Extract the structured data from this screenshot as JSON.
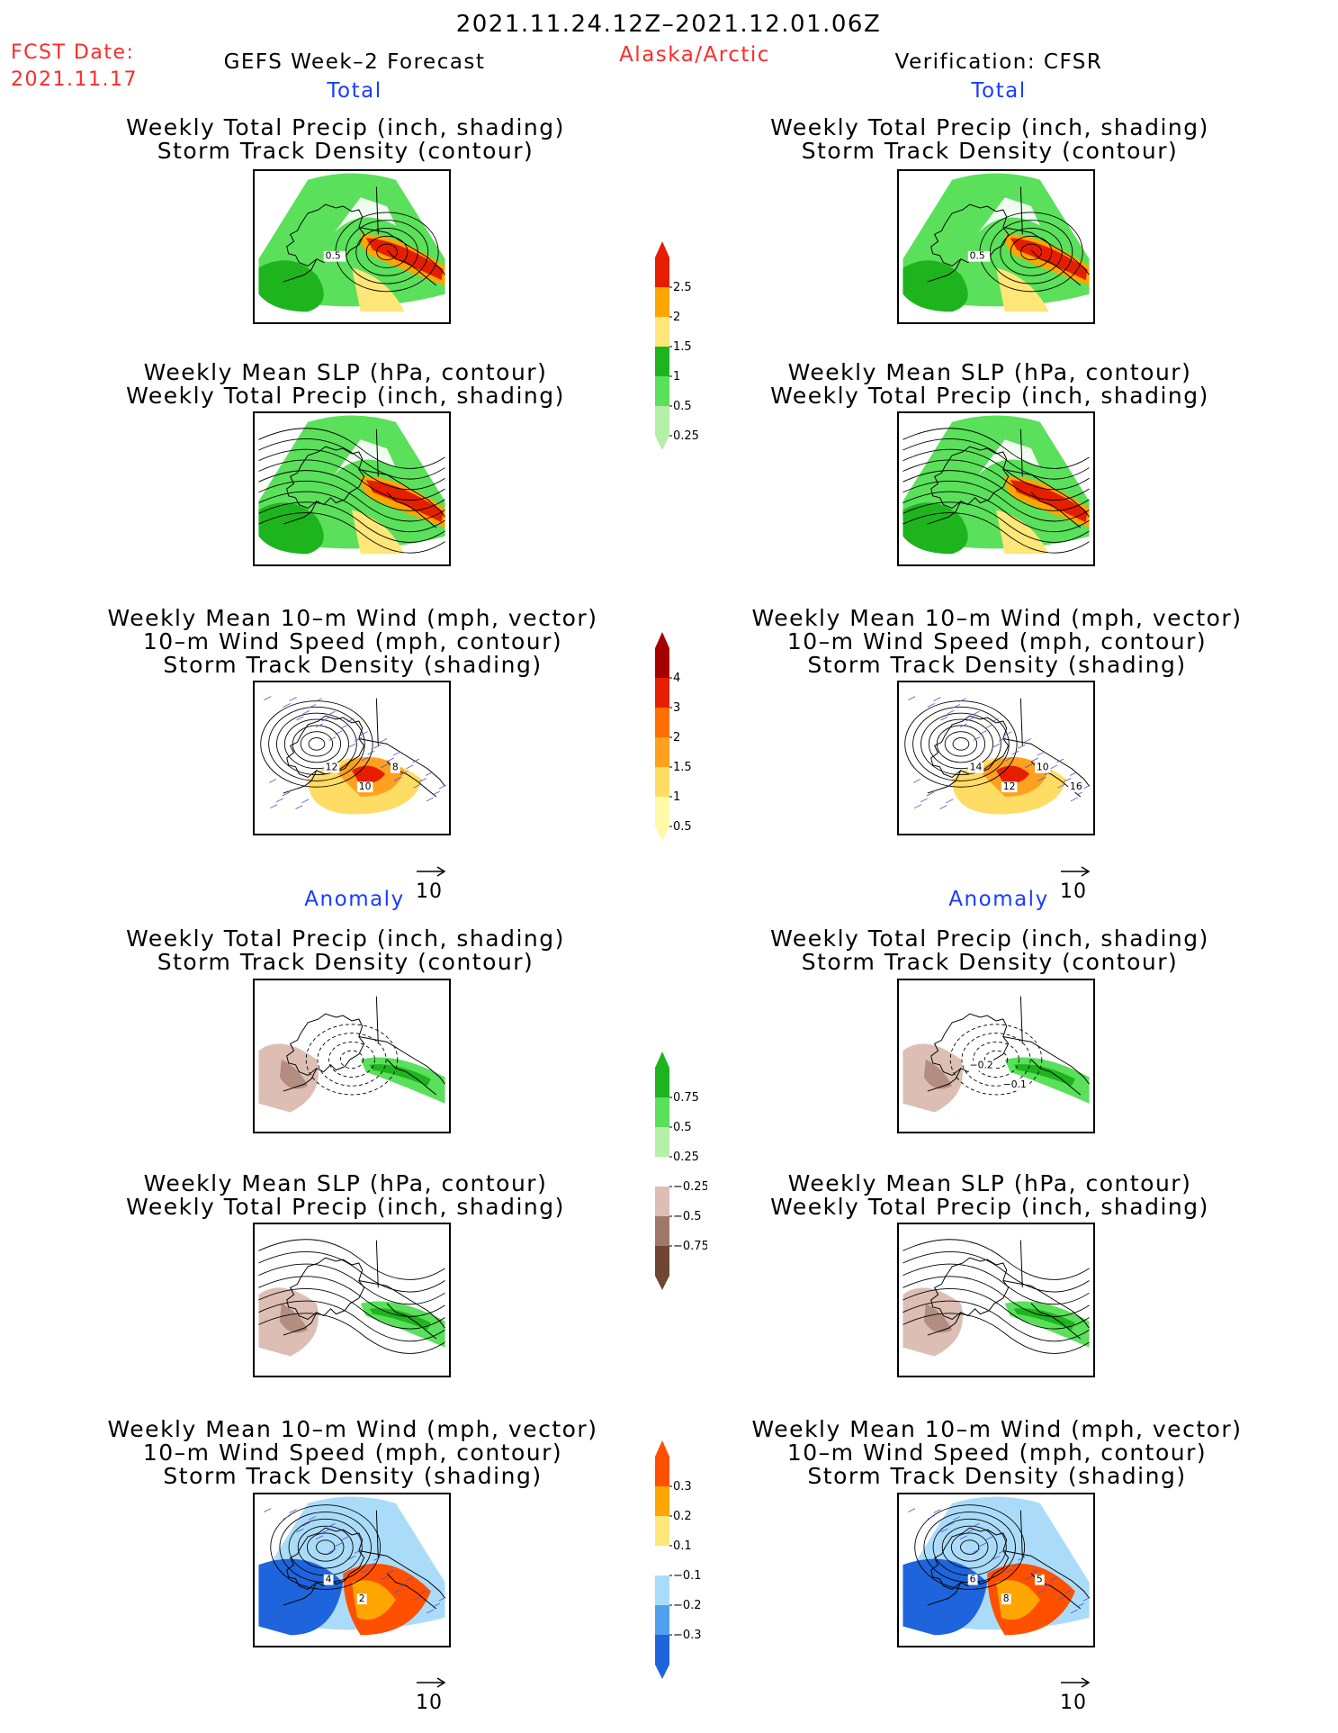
{
  "header": {
    "period": "2021.11.24.12Z–2021.12.01.06Z",
    "fcst_label": "FCST Date:",
    "fcst_date": "2021.11.17",
    "product": "GEFS Week–2 Forecast",
    "region": "Alaska/Arctic",
    "verification": "Verification: CFSR"
  },
  "sections": {
    "total": "Total",
    "anomaly": "Anomaly"
  },
  "titles": {
    "precip_storm": [
      "Weekly Total Precip (inch, shading)",
      "Storm Track Density (contour)"
    ],
    "slp_precip": [
      "Weekly Mean SLP (hPa, contour)",
      "Weekly Total Precip (inch, shading)"
    ],
    "wind_storm": [
      "Weekly Mean 10–m Wind (mph, vector)",
      "10–m Wind Speed (mph, contour)",
      "Storm Track Density (shading)"
    ]
  },
  "vector_key": "10",
  "chart_data": [
    {
      "type": "heatmap",
      "name": "total-precip-colorbar",
      "levels": [
        "0.25",
        "0.5",
        "1",
        "1.5",
        "2",
        "2.5"
      ],
      "colors": [
        "#b4f0a8",
        "#5ae05a",
        "#1eb41e",
        "#ffe678",
        "#ffa500",
        "#e61e00"
      ]
    },
    {
      "type": "heatmap",
      "name": "total-storm-density-colorbar",
      "levels": [
        "0.5",
        "1",
        "1.5",
        "2",
        "3",
        "4"
      ],
      "colors": [
        "#fffaaa",
        "#ffdc64",
        "#ffa01e",
        "#ff6e00",
        "#e61e00",
        "#a50000"
      ]
    },
    {
      "type": "heatmap",
      "name": "anomaly-precip-colorbar",
      "levels": [
        "−0.75",
        "−0.5",
        "−0.25",
        "0.25",
        "0.5",
        "0.75"
      ],
      "colors": [
        "#6e4632",
        "#a0786a",
        "#dcbeb4",
        "#ffffff",
        "#b4f0a8",
        "#5ae05a",
        "#1eb41e"
      ]
    },
    {
      "type": "heatmap",
      "name": "anomaly-storm-density-colorbar",
      "levels": [
        "−0.3",
        "−0.2",
        "−0.1",
        "0.1",
        "0.2",
        "0.3"
      ],
      "colors": [
        "#1e64dc",
        "#50a0f0",
        "#aadcfa",
        "#ffffff",
        "#ffe678",
        "#ffa500",
        "#ff5000"
      ]
    }
  ],
  "contour_labels": {
    "fcst_total_precip": [
      "0.5"
    ],
    "fcst_total_wind": [
      "12",
      "10",
      "8"
    ],
    "ver_total_wind": [
      "14",
      "12",
      "10",
      "16"
    ],
    "fcst_anom_wind": [
      "4",
      "2"
    ],
    "ver_anom_precip": [
      "−0.2",
      "−0.1"
    ],
    "ver_anom_wind": [
      "6",
      "8",
      "5"
    ]
  }
}
